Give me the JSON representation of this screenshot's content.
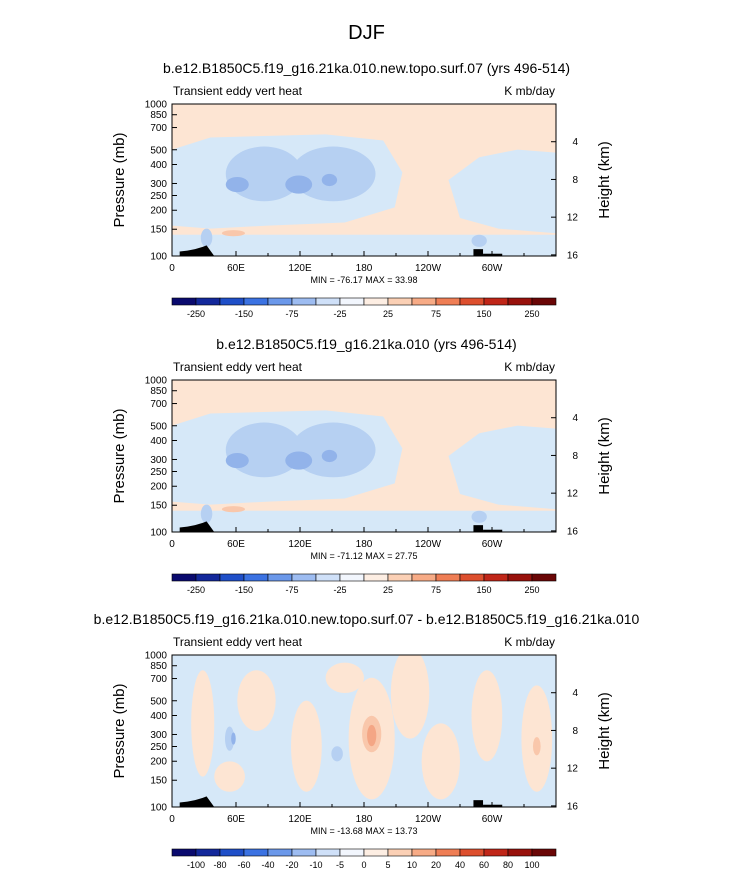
{
  "main_title": "DJF",
  "colors": {
    "band_m25_0": "#d6e8f8",
    "band_0_25": "#fde5d3",
    "band_m50_m25": "#b6d0f2",
    "band_m75_m50": "#92b3ea",
    "band_m100_m75": "#6f93e0",
    "band_25_50": "#f9c7ab",
    "band_50_75": "#f4a685",
    "topo": "#000000"
  },
  "chart_data": [
    {
      "type": "heatmap",
      "title": "b.e12.B1850C5.f19_g16.21ka.010.new.topo.surf.07 (yrs 496-514)",
      "left_label": "Transient eddy vert heat",
      "right_label": "K mb/day",
      "ylabel": "Pressure (mb)",
      "ylabel_right": "Height (km)",
      "x_ticks": [
        "0",
        "60E",
        "120E",
        "180",
        "120W",
        "60W"
      ],
      "xlim": [
        0,
        360
      ],
      "y_ticks": [
        "100",
        "150",
        "200",
        "250",
        "300",
        "400",
        "500",
        "700",
        "850",
        "1000"
      ],
      "ylim": [
        1000,
        100
      ],
      "y_right_ticks": [
        "4",
        "8",
        "12",
        "16"
      ],
      "min_max": "MIN = -76.17  MAX = 33.98",
      "colorbar_labels": [
        "-250",
        "-150",
        "-75",
        "-25",
        "25",
        "75",
        "150",
        "250"
      ],
      "value_range": [
        -76.17,
        33.98
      ]
    },
    {
      "type": "heatmap",
      "title": "b.e12.B1850C5.f19_g16.21ka.010 (yrs 496-514)",
      "left_label": "Transient eddy vert heat",
      "right_label": "K mb/day",
      "ylabel": "Pressure (mb)",
      "ylabel_right": "Height (km)",
      "x_ticks": [
        "0",
        "60E",
        "120E",
        "180",
        "120W",
        "60W"
      ],
      "xlim": [
        0,
        360
      ],
      "y_ticks": [
        "100",
        "150",
        "200",
        "250",
        "300",
        "400",
        "500",
        "700",
        "850",
        "1000"
      ],
      "ylim": [
        1000,
        100
      ],
      "y_right_ticks": [
        "4",
        "8",
        "12",
        "16"
      ],
      "min_max": "MIN = -71.12  MAX = 27.75",
      "colorbar_labels": [
        "-250",
        "-150",
        "-75",
        "-25",
        "25",
        "75",
        "150",
        "250"
      ],
      "value_range": [
        -71.12,
        27.75
      ]
    },
    {
      "type": "heatmap",
      "title": "b.e12.B1850C5.f19_g16.21ka.010.new.topo.surf.07 - b.e12.B1850C5.f19_g16.21ka.010",
      "left_label": "Transient eddy vert heat",
      "right_label": "K mb/day",
      "ylabel": "Pressure (mb)",
      "ylabel_right": "Height (km)",
      "x_ticks": [
        "0",
        "60E",
        "120E",
        "180",
        "120W",
        "60W"
      ],
      "xlim": [
        0,
        360
      ],
      "y_ticks": [
        "100",
        "150",
        "200",
        "250",
        "300",
        "400",
        "500",
        "700",
        "850",
        "1000"
      ],
      "ylim": [
        1000,
        100
      ],
      "y_right_ticks": [
        "4",
        "8",
        "12",
        "16"
      ],
      "min_max": "MIN = -13.68  MAX = 13.73",
      "colorbar_labels": [
        "-100",
        "-80",
        "-60",
        "-40",
        "-20",
        "-10",
        "-5",
        "0",
        "5",
        "10",
        "20",
        "40",
        "60",
        "80",
        "100"
      ],
      "value_range": [
        -13.68,
        13.73
      ]
    }
  ],
  "colorbar_palette": [
    "#0a0a6e",
    "#13289b",
    "#1f4fc8",
    "#3b72e2",
    "#6b98ea",
    "#9dbcf1",
    "#cfe0f8",
    "#f2f6fd",
    "#fdeee3",
    "#fbd0b5",
    "#f7ab86",
    "#ef7e55",
    "#dd4f2e",
    "#c02618",
    "#98110c",
    "#6a0606"
  ]
}
